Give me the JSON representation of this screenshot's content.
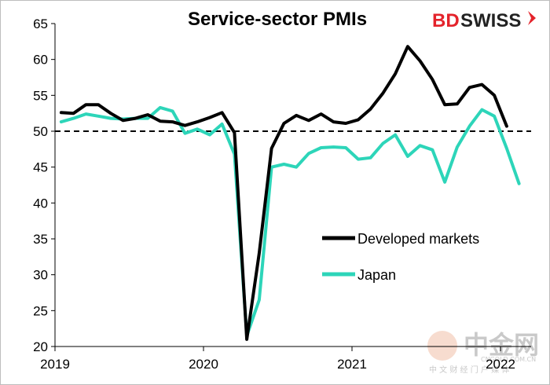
{
  "chart_data": {
    "type": "line",
    "title": "Service-sector PMIs",
    "ylim": [
      20,
      65
    ],
    "y_ticks": [
      "20",
      "25",
      "30",
      "35",
      "40",
      "45",
      "50",
      "55",
      "60",
      "65"
    ],
    "x_year_labels": [
      "2019",
      "2020",
      "2021",
      "2022"
    ],
    "reference_line": {
      "y": 50,
      "style": "dashed",
      "color": "#000000"
    },
    "legend_placement": "center-right",
    "months": [
      "2019-01",
      "2019-02",
      "2019-03",
      "2019-04",
      "2019-05",
      "2019-06",
      "2019-07",
      "2019-08",
      "2019-09",
      "2019-10",
      "2019-11",
      "2019-12",
      "2020-01",
      "2020-02",
      "2020-03",
      "2020-04",
      "2020-05",
      "2020-06",
      "2020-07",
      "2020-08",
      "2020-09",
      "2020-10",
      "2020-11",
      "2020-12",
      "2021-01",
      "2021-02",
      "2021-03",
      "2021-04",
      "2021-05",
      "2021-06",
      "2021-07",
      "2021-08",
      "2021-09",
      "2021-10",
      "2021-11",
      "2021-12",
      "2022-01",
      "2022-02"
    ],
    "series": [
      {
        "name": "Developed markets",
        "color": "#000000",
        "values": [
          52.6,
          52.5,
          53.7,
          53.7,
          52.5,
          51.5,
          51.8,
          52.3,
          51.4,
          51.3,
          50.8,
          51.3,
          51.9,
          52.6,
          49.8,
          21.0,
          33.0,
          47.6,
          51.1,
          52.2,
          51.5,
          52.4,
          51.3,
          51.1,
          51.6,
          53.1,
          55.3,
          58.0,
          61.8,
          59.8,
          57.2,
          53.7,
          53.8,
          56.1,
          56.5,
          55.0,
          50.7
        ]
      },
      {
        "name": "Japan",
        "color": "#2dd5b9",
        "values": [
          51.3,
          51.8,
          52.4,
          52.1,
          51.8,
          51.7,
          51.8,
          51.8,
          53.3,
          52.8,
          49.7,
          50.3,
          49.5,
          51.0,
          46.8,
          21.5,
          26.5,
          45.0,
          45.4,
          45.0,
          46.9,
          47.7,
          47.8,
          47.7,
          46.1,
          46.3,
          48.3,
          49.5,
          46.5,
          48.0,
          47.4,
          42.9,
          47.8,
          50.7,
          53.0,
          52.1,
          47.6,
          42.7
        ]
      }
    ]
  },
  "brand": {
    "bd": "BD",
    "swiss": "SWISS",
    "red": "#e4232b"
  },
  "watermark": {
    "main": "中金网",
    "url": "CNGOLD.COM.CN",
    "sub": "中 文 财 经 门 户 媒 体"
  }
}
